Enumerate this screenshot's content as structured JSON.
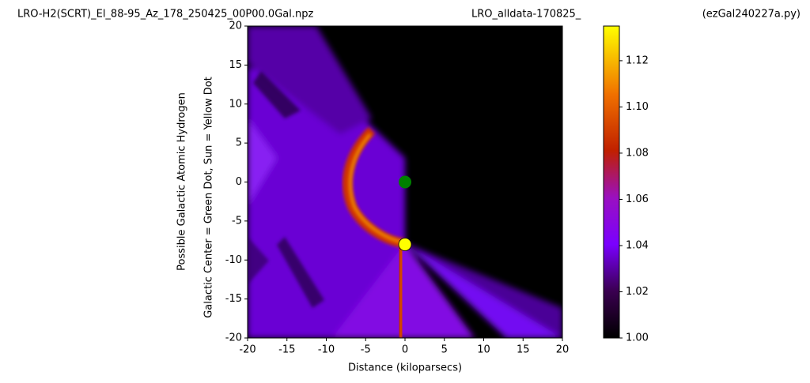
{
  "chart_data": {
    "type": "heatmap",
    "title": [
      "LRO-H2(SCRT)_El_88-95_Az_178_250425_00P00.0Gal.npz",
      "LRO_alldata-170825_",
      "(ezGal240227a.py)"
    ],
    "xlabel": "Distance (kiloparsecs)",
    "ylabel": [
      "Possible Galactic Atomic Hydrogen",
      "Galactic Center = Green Dot, Sun = Yellow Dot"
    ],
    "xlim": [
      -20,
      20
    ],
    "ylim": [
      -20,
      20
    ],
    "xticks": [
      -20,
      -15,
      -10,
      -5,
      0,
      5,
      10,
      15,
      20
    ],
    "yticks": [
      -20,
      -15,
      -10,
      -5,
      0,
      5,
      10,
      15,
      20
    ],
    "points": {
      "x": [
        0,
        0
      ],
      "y": [
        0,
        -8
      ],
      "colors": [
        "#008000",
        "#ffff00"
      ]
    },
    "colorbar": {
      "lim": [
        1.0,
        1.135
      ],
      "ticks": [
        {
          "value": 1.0,
          "label": "1.00"
        },
        1.02,
        1.04,
        1.06,
        1.08,
        {
          "value": 1.1,
          "label": "1.10"
        },
        1.12
      ]
    }
  }
}
